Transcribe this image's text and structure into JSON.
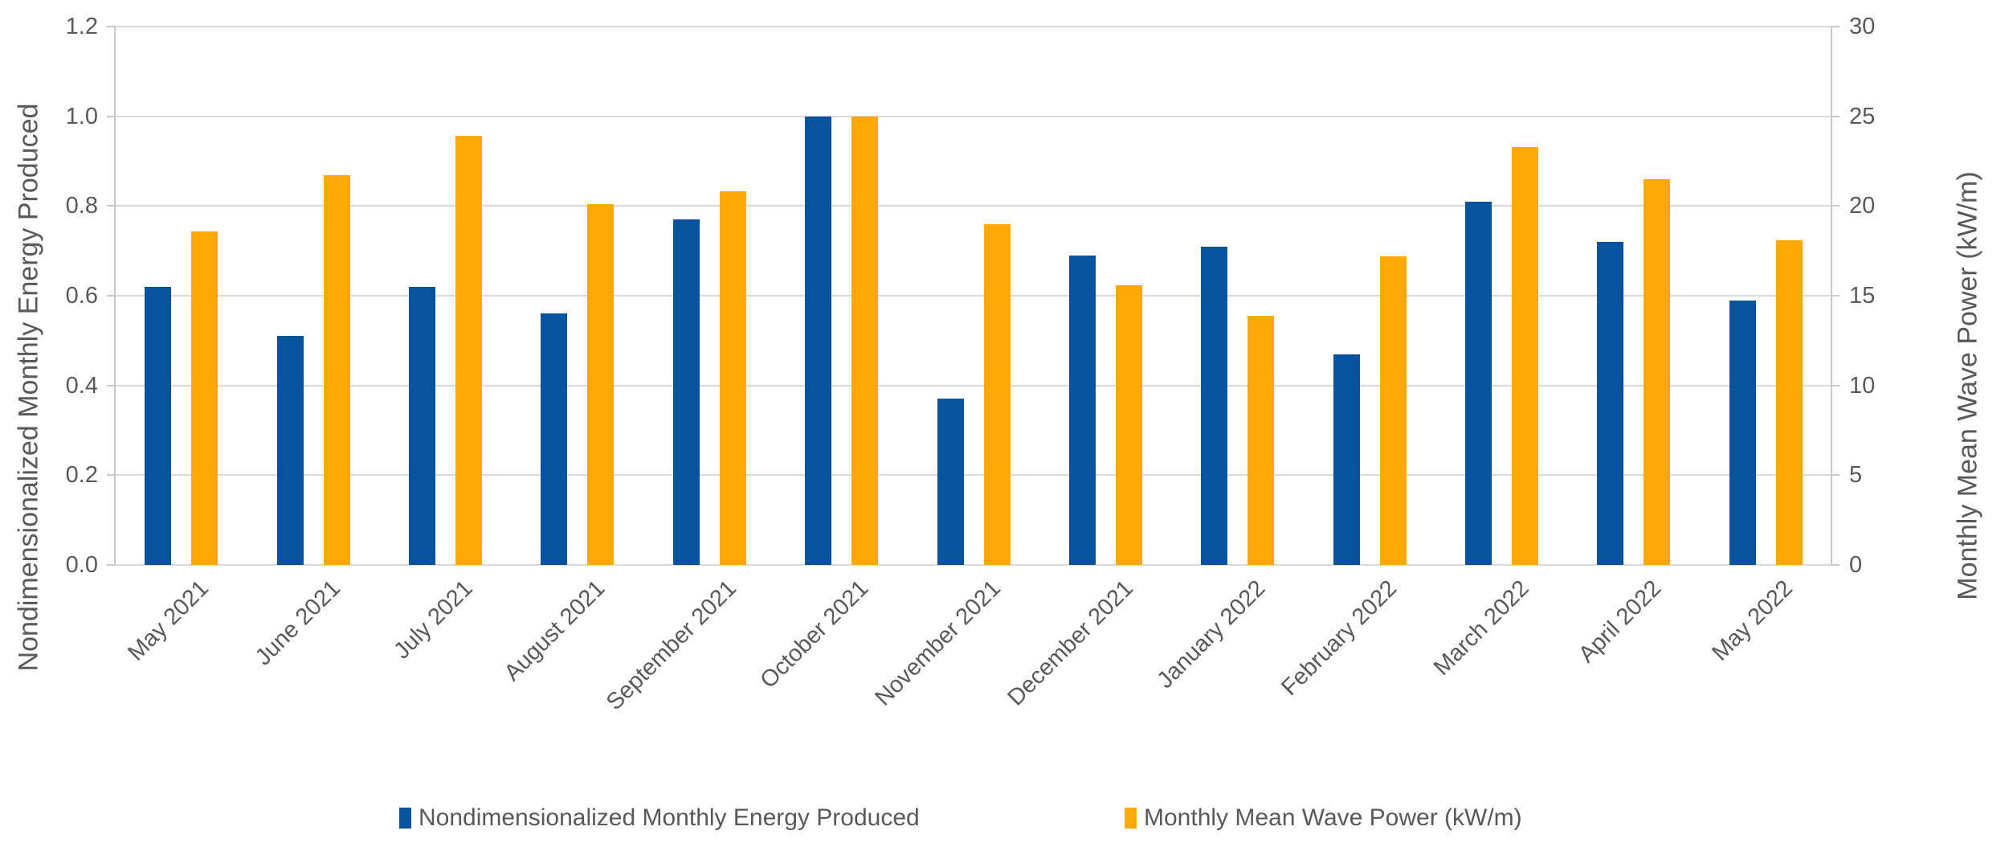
{
  "chart_data": {
    "type": "bar",
    "title": "",
    "categories": [
      "May 2021",
      "June 2021",
      "July 2021",
      "August 2021",
      "September 2021",
      "October 2021",
      "November 2021",
      "December 2021",
      "January 2022",
      "February 2022",
      "March 2022",
      "April 2022",
      "May 2022"
    ],
    "series": [
      {
        "name": "Nondimensionalized Monthly Energy Produced",
        "axis": "left",
        "color": "#08549C",
        "values": [
          0.62,
          0.51,
          0.62,
          0.56,
          0.77,
          1.0,
          0.37,
          0.69,
          0.71,
          0.47,
          0.81,
          0.72,
          0.59
        ]
      },
      {
        "name": "Monthly Mean Wave Power (kW/m)",
        "axis": "right",
        "color": "#FFA808",
        "values": [
          18.6,
          21.7,
          23.9,
          20.1,
          20.8,
          25.0,
          19.0,
          15.6,
          13.9,
          17.2,
          23.3,
          21.5,
          18.1
        ]
      }
    ],
    "left_axis": {
      "label": "Nondimensionalized Monthly Energy Produced",
      "min": 0.0,
      "max": 1.2,
      "ticks": [
        "1.2",
        "1.0",
        "0.8",
        "0.6",
        "0.4",
        "0.2",
        "0.0"
      ]
    },
    "right_axis": {
      "label": "Monthly Mean Wave Power (kW/m)",
      "min": 0,
      "max": 30,
      "ticks": [
        "30",
        "25",
        "20",
        "15",
        "10",
        "5",
        "0"
      ]
    },
    "legend_position": "bottom",
    "grid": "horizontal",
    "colors": {
      "gridline": "#d9d9d9",
      "axis_line": "#c9c9c9",
      "text": "#595959",
      "background": "#ffffff"
    }
  }
}
